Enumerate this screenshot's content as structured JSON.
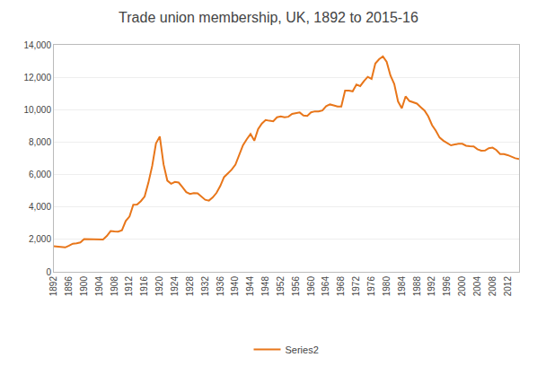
{
  "chart_data": {
    "type": "line",
    "title": "Trade union membership, UK, 1892 to 2015-16",
    "x": [
      1892,
      1893,
      1894,
      1895,
      1896,
      1897,
      1898,
      1899,
      1900,
      1901,
      1902,
      1903,
      1904,
      1905,
      1906,
      1907,
      1908,
      1909,
      1910,
      1911,
      1912,
      1913,
      1914,
      1915,
      1916,
      1917,
      1918,
      1919,
      1920,
      1921,
      1922,
      1923,
      1924,
      1925,
      1926,
      1927,
      1928,
      1929,
      1930,
      1931,
      1932,
      1933,
      1934,
      1935,
      1936,
      1937,
      1938,
      1939,
      1940,
      1941,
      1942,
      1943,
      1944,
      1945,
      1946,
      1947,
      1948,
      1949,
      1950,
      1951,
      1952,
      1953,
      1954,
      1955,
      1956,
      1957,
      1958,
      1959,
      1960,
      1961,
      1962,
      1963,
      1964,
      1965,
      1966,
      1967,
      1968,
      1969,
      1970,
      1971,
      1972,
      1973,
      1974,
      1975,
      1976,
      1977,
      1978,
      1979,
      1980,
      1981,
      1982,
      1983,
      1984,
      1985,
      1986,
      1987,
      1988,
      1989,
      1990,
      1991,
      1992,
      1993,
      1994,
      1995,
      1996,
      1997,
      1998,
      1999,
      2000,
      2001,
      2002,
      2003,
      2004,
      2005,
      2006,
      2007,
      2008,
      2009,
      2010,
      2011,
      2012,
      2013,
      2014,
      2015
    ],
    "series": [
      {
        "name": "Series2",
        "color": "#E8761A",
        "values": [
          1576,
          1559,
          1530,
          1504,
          1608,
          1731,
          1752,
          1812,
          2022,
          2025,
          2013,
          1994,
          1994,
          1997,
          2210,
          2513,
          2485,
          2477,
          2565,
          3139,
          3416,
          4135,
          4145,
          4359,
          4644,
          5499,
          6534,
          7926,
          8348,
          6633,
          5625,
          5429,
          5544,
          5506,
          5219,
          4919,
          4806,
          4858,
          4842,
          4624,
          4444,
          4392,
          4590,
          4867,
          5295,
          5842,
          6053,
          6298,
          6613,
          7165,
          7803,
          8174,
          8503,
          8087,
          8803,
          9145,
          9363,
          9318,
          9289,
          9530,
          9583,
          9527,
          9566,
          9741,
          9778,
          9829,
          9639,
          9620,
          9835,
          9897,
          9887,
          9952,
          10218,
          10325,
          10262,
          10194,
          10200,
          11176,
          11179,
          11135,
          11549,
          11456,
          11764,
          12026,
          11902,
          12846,
          13112,
          13289,
          12947,
          12106,
          11593,
          10510,
          10082,
          10821,
          10539,
          10475,
          10376,
          10158,
          9947,
          9585,
          9048,
          8700,
          8278,
          8089,
          7938,
          7801,
          7852,
          7897,
          7898,
          7779,
          7750,
          7736,
          7560,
          7473,
          7482,
          7627,
          7657,
          7512,
          7261,
          7261,
          7197,
          7086,
          7005,
          6960
        ]
      }
    ],
    "xlim": [
      1892,
      2015
    ],
    "xticks": [
      1892,
      1896,
      1900,
      1904,
      1908,
      1912,
      1916,
      1920,
      1924,
      1928,
      1932,
      1936,
      1940,
      1944,
      1948,
      1952,
      1956,
      1960,
      1964,
      1968,
      1972,
      1976,
      1980,
      1984,
      1988,
      1992,
      1996,
      2000,
      2004,
      2008,
      2012
    ],
    "ylim": [
      0,
      14000
    ],
    "yticks": [
      0,
      {
        "value": 2000,
        "label": "2,000"
      },
      {
        "value": 4000,
        "label": "4,000"
      },
      {
        "value": 6000,
        "label": "6,000"
      },
      {
        "value": 8000,
        "label": "8,000"
      },
      {
        "value": 10000,
        "label": "10,000"
      },
      {
        "value": 12000,
        "label": "12,000"
      },
      {
        "value": 14000,
        "label": "14,000"
      }
    ],
    "grid": true,
    "legend": "bottom"
  }
}
